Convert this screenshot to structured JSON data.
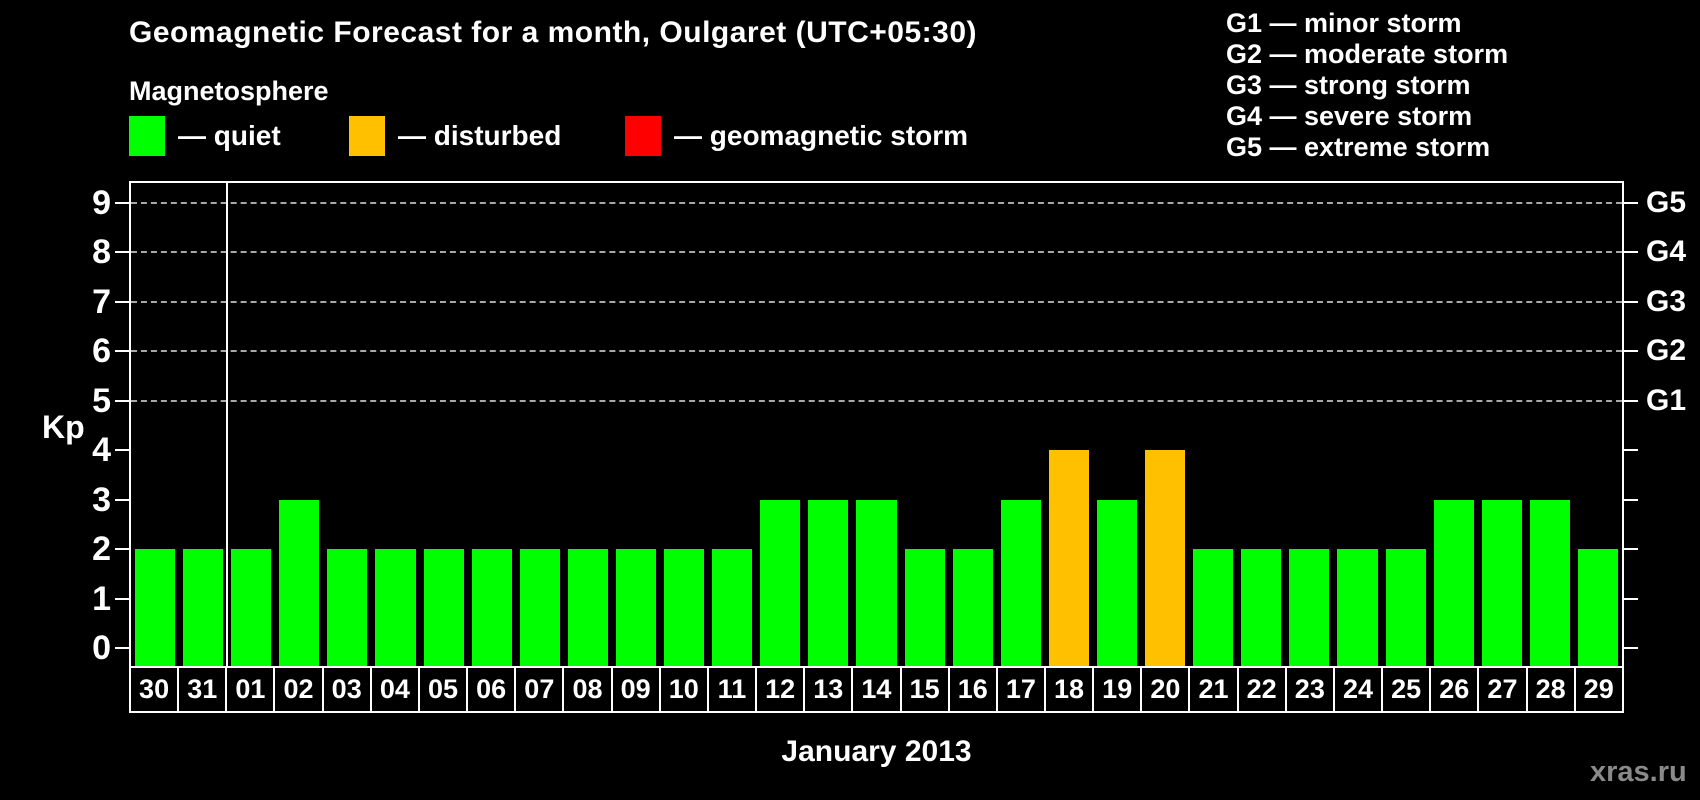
{
  "title": "Geomagnetic Forecast for a month, Oulgaret (UTC+05:30)",
  "legend": {
    "heading": "Magnetosphere",
    "items": [
      {
        "name": "quiet",
        "label": "— quiet",
        "color": "#00ff00",
        "x": 129
      },
      {
        "name": "disturbed",
        "label": "— disturbed",
        "color": "#ffc000",
        "x": 349
      },
      {
        "name": "geomagnetic-storm",
        "label": "— geomagnetic storm",
        "color": "#ff0000",
        "x": 625
      }
    ]
  },
  "g_legend": [
    "G1 — minor storm",
    "G2 — moderate storm",
    "G3 — strong storm",
    "G4 — severe storm",
    "G5 — extreme storm"
  ],
  "watermark": "xras.ru",
  "chart_data": {
    "type": "bar",
    "title": "Geomagnetic Forecast for a month, Oulgaret (UTC+05:30)",
    "xlabel": "January 2013",
    "ylabel": "Kp",
    "ylim": [
      0,
      9
    ],
    "yticks": [
      0,
      1,
      2,
      3,
      4,
      5,
      6,
      7,
      8,
      9
    ],
    "grid": "dashed horizontal lines at Kp 5-9 only",
    "legend_position": "top",
    "categories": [
      "30",
      "31",
      "01",
      "02",
      "03",
      "04",
      "05",
      "06",
      "07",
      "08",
      "09",
      "10",
      "11",
      "12",
      "13",
      "14",
      "15",
      "16",
      "17",
      "18",
      "19",
      "20",
      "21",
      "22",
      "23",
      "24",
      "25",
      "26",
      "27",
      "28",
      "29"
    ],
    "values": [
      2,
      2,
      2,
      3,
      2,
      2,
      2,
      2,
      2,
      2,
      2,
      2,
      2,
      3,
      3,
      3,
      2,
      2,
      3,
      4,
      3,
      4,
      2,
      2,
      2,
      2,
      2,
      3,
      3,
      3,
      2
    ],
    "month_boundary_after_index": 1,
    "g_levels": [
      {
        "kp": 5,
        "label": "G1"
      },
      {
        "kp": 6,
        "label": "G2"
      },
      {
        "kp": 7,
        "label": "G3"
      },
      {
        "kp": 8,
        "label": "G4"
      },
      {
        "kp": 9,
        "label": "G5"
      }
    ],
    "color_rules": {
      "quiet_max_kp": 3,
      "disturbed_kp": 4,
      "storm_min_kp": 5,
      "quiet_color": "#00ff00",
      "disturbed_color": "#ffc000",
      "storm_color": "#ff0000"
    }
  }
}
